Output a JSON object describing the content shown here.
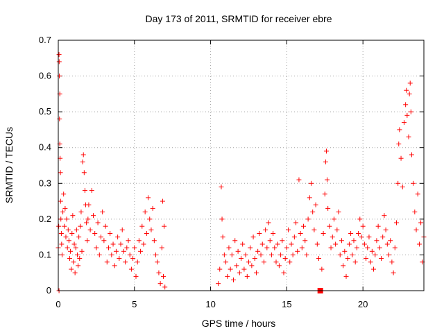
{
  "chart_data": {
    "type": "scatter",
    "title": "Day 173 of 2011, SRMTID for receiver ebre",
    "xlabel": "GPS time / hours",
    "ylabel": "SRMTID / TECUs",
    "xlim": [
      0,
      24
    ],
    "ylim": [
      0,
      0.7
    ],
    "x_ticks": [
      0,
      5,
      10,
      15,
      20
    ],
    "y_ticks": [
      0,
      0.1,
      0.2,
      0.3,
      0.4,
      0.5,
      0.6,
      0.7
    ],
    "x_tick_labels": [
      "0",
      "5",
      "10",
      "15",
      "20"
    ],
    "y_tick_labels": [
      "0",
      "0.1",
      "0.2",
      "0.3",
      "0.4",
      "0.5",
      "0.6",
      "0.7"
    ],
    "grid": true,
    "marker": "+",
    "color": "#ff0000",
    "series": [
      {
        "name": "SRMTID",
        "points": [
          [
            0.0,
            0.12
          ],
          [
            0.03,
            0.18
          ],
          [
            0.05,
            0.66
          ],
          [
            0.06,
            0.64
          ],
          [
            0.07,
            0.6
          ],
          [
            0.08,
            0.48
          ],
          [
            0.1,
            0.55
          ],
          [
            0.1,
            0.41
          ],
          [
            0.12,
            0.37
          ],
          [
            0.14,
            0.33
          ],
          [
            0.15,
            0.25
          ],
          [
            0.17,
            0.2
          ],
          [
            0.2,
            0.16
          ],
          [
            0.22,
            0.13
          ],
          [
            0.25,
            0.1
          ],
          [
            0.05,
            0.0
          ],
          [
            0.3,
            0.22
          ],
          [
            0.35,
            0.27
          ],
          [
            0.4,
            0.18
          ],
          [
            0.45,
            0.23
          ],
          [
            0.5,
            0.15
          ],
          [
            0.55,
            0.2
          ],
          [
            0.6,
            0.12
          ],
          [
            0.65,
            0.17
          ],
          [
            0.7,
            0.14
          ],
          [
            0.75,
            0.09
          ],
          [
            0.8,
            0.11
          ],
          [
            0.85,
            0.06
          ],
          [
            0.9,
            0.16
          ],
          [
            0.95,
            0.21
          ],
          [
            1.0,
            0.08
          ],
          [
            1.05,
            0.13
          ],
          [
            1.1,
            0.05
          ],
          [
            1.15,
            0.12
          ],
          [
            1.2,
            0.17
          ],
          [
            1.25,
            0.1
          ],
          [
            1.3,
            0.07
          ],
          [
            1.35,
            0.15
          ],
          [
            1.4,
            0.09
          ],
          [
            1.45,
            0.18
          ],
          [
            1.5,
            0.22
          ],
          [
            1.55,
            0.11
          ],
          [
            1.6,
            0.36
          ],
          [
            1.65,
            0.38
          ],
          [
            1.7,
            0.33
          ],
          [
            1.75,
            0.28
          ],
          [
            1.8,
            0.24
          ],
          [
            1.85,
            0.19
          ],
          [
            1.9,
            0.14
          ],
          [
            1.95,
            0.2
          ],
          [
            2.0,
            0.24
          ],
          [
            2.1,
            0.17
          ],
          [
            2.2,
            0.28
          ],
          [
            2.3,
            0.21
          ],
          [
            2.4,
            0.16
          ],
          [
            2.5,
            0.12
          ],
          [
            2.6,
            0.19
          ],
          [
            2.7,
            0.1
          ],
          [
            2.8,
            0.15
          ],
          [
            2.9,
            0.22
          ],
          [
            3.0,
            0.14
          ],
          [
            3.1,
            0.18
          ],
          [
            3.2,
            0.08
          ],
          [
            3.3,
            0.12
          ],
          [
            3.4,
            0.16
          ],
          [
            3.5,
            0.1
          ],
          [
            3.6,
            0.13
          ],
          [
            3.7,
            0.07
          ],
          [
            3.8,
            0.11
          ],
          [
            3.9,
            0.15
          ],
          [
            4.0,
            0.09
          ],
          [
            4.1,
            0.13
          ],
          [
            4.2,
            0.17
          ],
          [
            4.3,
            0.11
          ],
          [
            4.4,
            0.08
          ],
          [
            4.5,
            0.12
          ],
          [
            4.6,
            0.14
          ],
          [
            4.7,
            0.1
          ],
          [
            4.8,
            0.06
          ],
          [
            4.9,
            0.09
          ],
          [
            5.0,
            0.12
          ],
          [
            5.1,
            0.04
          ],
          [
            5.2,
            0.08
          ],
          [
            5.3,
            0.14
          ],
          [
            5.4,
            0.11
          ],
          [
            5.5,
            0.18
          ],
          [
            5.6,
            0.13
          ],
          [
            5.7,
            0.22
          ],
          [
            5.8,
            0.16
          ],
          [
            5.9,
            0.26
          ],
          [
            6.0,
            0.2
          ],
          [
            6.1,
            0.17
          ],
          [
            6.2,
            0.23
          ],
          [
            6.3,
            0.14
          ],
          [
            6.4,
            0.1
          ],
          [
            6.5,
            0.08
          ],
          [
            6.6,
            0.05
          ],
          [
            6.7,
            0.02
          ],
          [
            6.8,
            0.12
          ],
          [
            6.9,
            0.04
          ],
          [
            7.0,
            0.01
          ],
          [
            6.85,
            0.25
          ],
          [
            6.95,
            0.18
          ],
          [
            10.5,
            0.02
          ],
          [
            10.6,
            0.06
          ],
          [
            10.7,
            0.29
          ],
          [
            10.75,
            0.2
          ],
          [
            10.8,
            0.15
          ],
          [
            10.9,
            0.1
          ],
          [
            11.0,
            0.08
          ],
          [
            11.1,
            0.04
          ],
          [
            11.2,
            0.12
          ],
          [
            11.3,
            0.06
          ],
          [
            11.4,
            0.1
          ],
          [
            11.5,
            0.03
          ],
          [
            11.6,
            0.14
          ],
          [
            11.7,
            0.07
          ],
          [
            11.8,
            0.11
          ],
          [
            11.9,
            0.05
          ],
          [
            12.0,
            0.09
          ],
          [
            12.1,
            0.13
          ],
          [
            12.2,
            0.06
          ],
          [
            12.3,
            0.1
          ],
          [
            12.4,
            0.04
          ],
          [
            12.5,
            0.08
          ],
          [
            12.6,
            0.12
          ],
          [
            12.7,
            0.07
          ],
          [
            12.8,
            0.15
          ],
          [
            12.9,
            0.09
          ],
          [
            13.0,
            0.05
          ],
          [
            13.1,
            0.11
          ],
          [
            13.2,
            0.16
          ],
          [
            13.3,
            0.1
          ],
          [
            13.4,
            0.13
          ],
          [
            13.5,
            0.08
          ],
          [
            13.6,
            0.17
          ],
          [
            13.7,
            0.12
          ],
          [
            13.8,
            0.19
          ],
          [
            13.9,
            0.14
          ],
          [
            14.0,
            0.1
          ],
          [
            14.1,
            0.16
          ],
          [
            14.2,
            0.12
          ],
          [
            14.3,
            0.08
          ],
          [
            14.4,
            0.13
          ],
          [
            14.5,
            0.07
          ],
          [
            14.6,
            0.1
          ],
          [
            14.7,
            0.14
          ],
          [
            14.8,
            0.05
          ],
          [
            14.9,
            0.09
          ],
          [
            15.0,
            0.12
          ],
          [
            15.1,
            0.17
          ],
          [
            15.2,
            0.08
          ],
          [
            15.3,
            0.13
          ],
          [
            15.4,
            0.1
          ],
          [
            15.5,
            0.15
          ],
          [
            15.6,
            0.19
          ],
          [
            15.7,
            0.11
          ],
          [
            15.8,
            0.31
          ],
          [
            15.9,
            0.16
          ],
          [
            16.0,
            0.12
          ],
          [
            16.1,
            0.18
          ],
          [
            16.2,
            0.14
          ],
          [
            16.3,
            0.1
          ],
          [
            16.4,
            0.2
          ],
          [
            16.5,
            0.26
          ],
          [
            16.6,
            0.3
          ],
          [
            16.7,
            0.22
          ],
          [
            16.8,
            0.17
          ],
          [
            16.9,
            0.24
          ],
          [
            17.0,
            0.13
          ],
          [
            17.1,
            0.09
          ],
          [
            17.2,
            0.0
          ],
          [
            17.3,
            0.06
          ],
          [
            17.4,
            0.16
          ],
          [
            17.5,
            0.27
          ],
          [
            17.55,
            0.36
          ],
          [
            17.6,
            0.39
          ],
          [
            17.65,
            0.31
          ],
          [
            17.7,
            0.23
          ],
          [
            17.8,
            0.18
          ],
          [
            17.9,
            0.12
          ],
          [
            18.0,
            0.15
          ],
          [
            18.1,
            0.2
          ],
          [
            18.2,
            0.13
          ],
          [
            18.3,
            0.17
          ],
          [
            18.4,
            0.22
          ],
          [
            18.5,
            0.1
          ],
          [
            18.6,
            0.14
          ],
          [
            18.7,
            0.07
          ],
          [
            18.8,
            0.11
          ],
          [
            18.9,
            0.04
          ],
          [
            19.0,
            0.09
          ],
          [
            19.1,
            0.13
          ],
          [
            19.2,
            0.16
          ],
          [
            19.3,
            0.1
          ],
          [
            19.4,
            0.14
          ],
          [
            19.5,
            0.08
          ],
          [
            19.6,
            0.12
          ],
          [
            19.7,
            0.16
          ],
          [
            19.8,
            0.2
          ],
          [
            19.9,
            0.15
          ],
          [
            20.0,
            0.18
          ],
          [
            20.1,
            0.13
          ],
          [
            20.2,
            0.09
          ],
          [
            20.3,
            0.12
          ],
          [
            20.4,
            0.15
          ],
          [
            20.5,
            0.08
          ],
          [
            20.6,
            0.11
          ],
          [
            20.7,
            0.06
          ],
          [
            20.8,
            0.1
          ],
          [
            20.9,
            0.14
          ],
          [
            21.0,
            0.18
          ],
          [
            21.1,
            0.12
          ],
          [
            21.2,
            0.09
          ],
          [
            21.3,
            0.15
          ],
          [
            21.4,
            0.21
          ],
          [
            21.5,
            0.17
          ],
          [
            21.6,
            0.13
          ],
          [
            21.7,
            0.1
          ],
          [
            21.8,
            0.14
          ],
          [
            21.9,
            0.08
          ],
          [
            22.0,
            0.05
          ],
          [
            22.1,
            0.12
          ],
          [
            22.2,
            0.19
          ],
          [
            22.3,
            0.3
          ],
          [
            22.35,
            0.41
          ],
          [
            22.4,
            0.45
          ],
          [
            22.5,
            0.37
          ],
          [
            22.6,
            0.29
          ],
          [
            22.7,
            0.47
          ],
          [
            22.8,
            0.52
          ],
          [
            22.85,
            0.56
          ],
          [
            22.9,
            0.49
          ],
          [
            23.0,
            0.43
          ],
          [
            23.05,
            0.55
          ],
          [
            23.1,
            0.58
          ],
          [
            23.15,
            0.5
          ],
          [
            23.2,
            0.38
          ],
          [
            23.3,
            0.3
          ],
          [
            23.4,
            0.22
          ],
          [
            23.5,
            0.17
          ],
          [
            23.6,
            0.27
          ],
          [
            23.7,
            0.13
          ],
          [
            23.8,
            0.19
          ],
          [
            23.9,
            0.08
          ],
          [
            24.0,
            0.15
          ]
        ]
      }
    ],
    "highlight_point": [
      17.2,
      0.0
    ]
  }
}
